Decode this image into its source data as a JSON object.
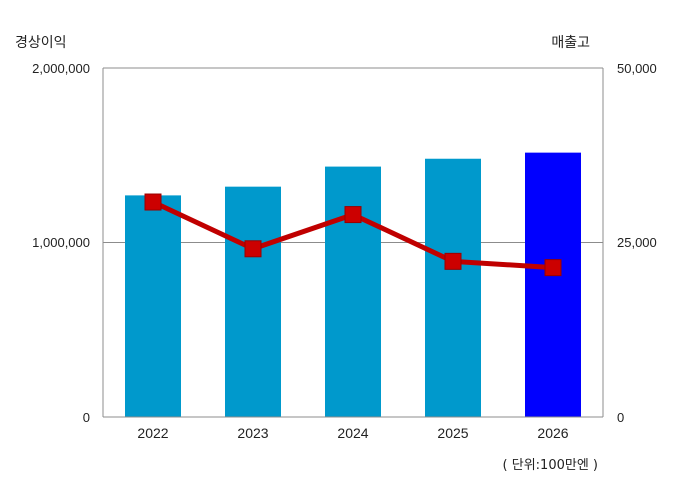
{
  "chart_data": {
    "type": "bar",
    "categories": [
      "2022",
      "2023",
      "2024",
      "2025",
      "2026"
    ],
    "series": [
      {
        "name": "경상이익",
        "type": "bar",
        "axis": "left",
        "values": [
          1270000,
          1320000,
          1435000,
          1480000,
          1515000
        ],
        "colors": [
          "#0099cc",
          "#0099cc",
          "#0099cc",
          "#0099cc",
          "#0000ff"
        ]
      },
      {
        "name": "매출고",
        "type": "line",
        "axis": "right",
        "values": [
          30800,
          24100,
          29000,
          22300,
          21400
        ],
        "color": "#c00000",
        "marker_color": "#cc0000"
      }
    ],
    "ylabel_left": "경상이익",
    "ylabel_right": "매출고",
    "ylim_left": [
      0,
      2000000
    ],
    "ylim_right": [
      0,
      50000
    ],
    "yticks_left": [
      "0",
      "1,000,000",
      "2,000,000"
    ],
    "yticks_right": [
      "0",
      "25,000",
      "50,000"
    ],
    "unit_note": "( 단위:100만엔 )",
    "grid": true
  }
}
